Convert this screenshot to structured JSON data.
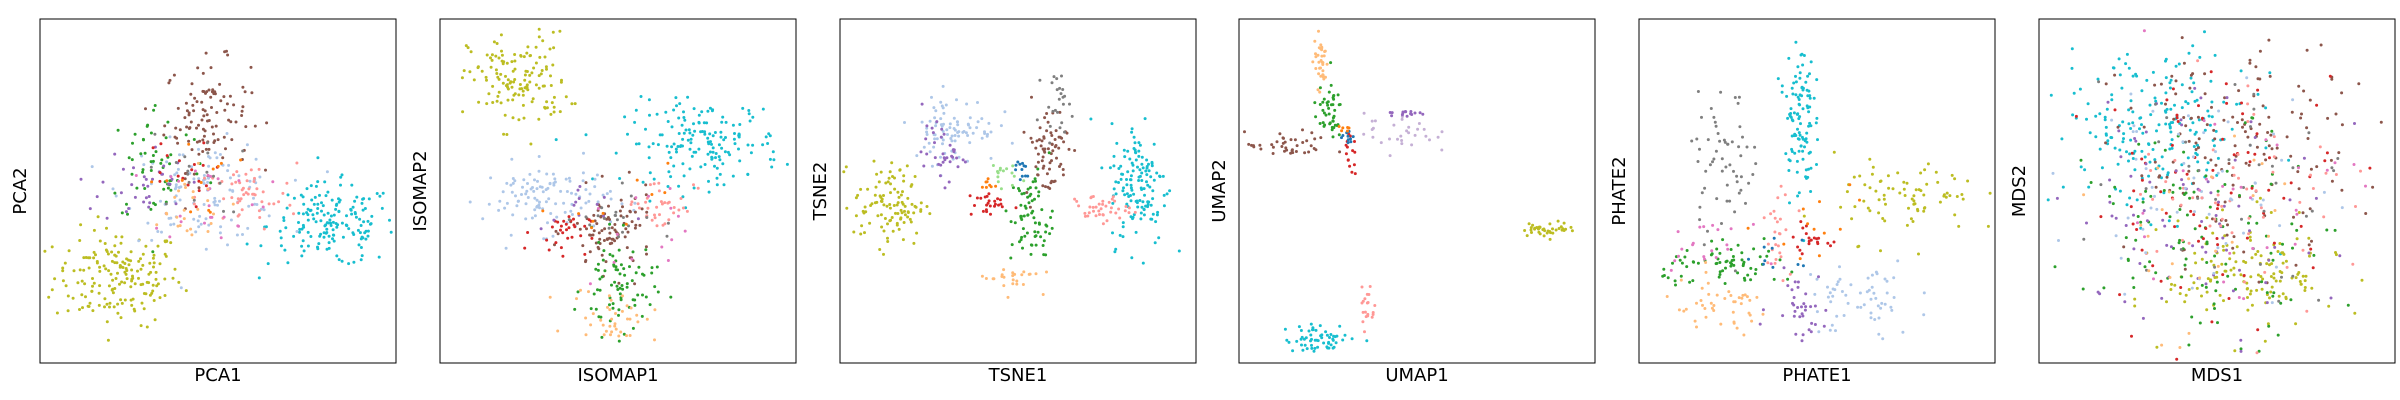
{
  "palette": {
    "blue": "#1f77b4",
    "orange": "#ff7f0e",
    "peach": "#ffbb78",
    "green": "#2ca02c",
    "light_green": "#98df8a",
    "red": "#d62728",
    "salmon": "#ff9896",
    "purple": "#9467bd",
    "lavender": "#c5b0d5",
    "brown": "#8c564b",
    "pink": "#e377c2",
    "gray": "#7f7f7f",
    "olive": "#bcbd22",
    "cyan": "#17becf",
    "light_blue": "#aec7e8"
  },
  "chart_data": [
    {
      "type": "scatter",
      "xlabel": "PCA1",
      "ylabel": "PCA2",
      "xlim": [
        0,
        100
      ],
      "ylim": [
        0,
        100
      ],
      "ticks": false,
      "grid": false,
      "legend": "none",
      "clusters": [
        {
          "color": "olive",
          "x": 22,
          "y": 25,
          "sx": 9,
          "sy": 7,
          "count": 180
        },
        {
          "color": "brown",
          "x": 47,
          "y": 72,
          "sx": 6,
          "sy": 8,
          "count": 110
        },
        {
          "color": "cyan",
          "x": 82,
          "y": 40,
          "sx": 9,
          "sy": 6,
          "count": 170
        },
        {
          "color": "light_blue",
          "x": 46,
          "y": 50,
          "sx": 11,
          "sy": 7,
          "count": 110
        },
        {
          "color": "salmon",
          "x": 58,
          "y": 48,
          "sx": 7,
          "sy": 5,
          "count": 50
        },
        {
          "color": "green",
          "x": 33,
          "y": 58,
          "sx": 7,
          "sy": 9,
          "count": 55
        },
        {
          "color": "purple",
          "x": 29,
          "y": 52,
          "sx": 6,
          "sy": 6,
          "count": 35
        },
        {
          "color": "pink",
          "x": 48,
          "y": 48,
          "sx": 8,
          "sy": 6,
          "count": 25
        },
        {
          "color": "peach",
          "x": 40,
          "y": 44,
          "sx": 7,
          "sy": 6,
          "count": 25
        },
        {
          "color": "red",
          "x": 38,
          "y": 55,
          "sx": 5,
          "sy": 5,
          "count": 18
        },
        {
          "color": "gray",
          "x": 44,
          "y": 55,
          "sx": 7,
          "sy": 6,
          "count": 18
        },
        {
          "color": "orange",
          "x": 43,
          "y": 53,
          "sx": 6,
          "sy": 6,
          "count": 12
        }
      ]
    },
    {
      "type": "scatter",
      "xlabel": "ISOMAP1",
      "ylabel": "ISOMAP2",
      "xlim": [
        0,
        100
      ],
      "ylim": [
        0,
        100
      ],
      "ticks": false,
      "grid": false,
      "legend": "none",
      "clusters": [
        {
          "color": "olive",
          "x": 22,
          "y": 82,
          "sx": 7,
          "sy": 7,
          "count": 140
        },
        {
          "color": "cyan",
          "x": 74,
          "y": 64,
          "sx": 11,
          "sy": 6,
          "count": 170
        },
        {
          "color": "light_blue",
          "x": 30,
          "y": 48,
          "sx": 9,
          "sy": 5,
          "count": 110
        },
        {
          "color": "brown",
          "x": 48,
          "y": 38,
          "sx": 6,
          "sy": 6,
          "count": 90
        },
        {
          "color": "green",
          "x": 50,
          "y": 22,
          "sx": 5,
          "sy": 7,
          "count": 80
        },
        {
          "color": "peach",
          "x": 49,
          "y": 14,
          "sx": 6,
          "sy": 4,
          "count": 40
        },
        {
          "color": "salmon",
          "x": 62,
          "y": 46,
          "sx": 5,
          "sy": 4,
          "count": 35
        },
        {
          "color": "red",
          "x": 34,
          "y": 38,
          "sx": 4,
          "sy": 3,
          "count": 30
        },
        {
          "color": "gray",
          "x": 47,
          "y": 42,
          "sx": 6,
          "sy": 5,
          "count": 20
        },
        {
          "color": "pink",
          "x": 54,
          "y": 36,
          "sx": 8,
          "sy": 7,
          "count": 14
        },
        {
          "color": "purple",
          "x": 40,
          "y": 44,
          "sx": 6,
          "sy": 5,
          "count": 12
        },
        {
          "color": "orange",
          "x": 48,
          "y": 46,
          "sx": 8,
          "sy": 6,
          "count": 10
        }
      ]
    },
    {
      "type": "scatter",
      "xlabel": "TSNE1",
      "ylabel": "TSNE2",
      "xlim": [
        0,
        100
      ],
      "ylim": [
        0,
        100
      ],
      "ticks": false,
      "grid": false,
      "legend": "none",
      "clusters": [
        {
          "color": "olive",
          "x": 14,
          "y": 46,
          "sx": 5,
          "sy": 6,
          "count": 110
        },
        {
          "color": "cyan",
          "x": 84,
          "y": 52,
          "sx": 4,
          "sy": 9,
          "count": 140
        },
        {
          "color": "light_blue",
          "x": 32,
          "y": 68,
          "sx": 6,
          "sy": 5,
          "count": 90
        },
        {
          "color": "brown",
          "x": 58,
          "y": 62,
          "sx": 3,
          "sy": 7,
          "count": 70
        },
        {
          "color": "gray",
          "x": 61,
          "y": 76,
          "sx": 2,
          "sy": 4,
          "count": 25
        },
        {
          "color": "green",
          "x": 54,
          "y": 42,
          "sx": 3,
          "sy": 7,
          "count": 70
        },
        {
          "color": "salmon",
          "x": 73,
          "y": 45,
          "sx": 4,
          "sy": 2,
          "count": 40
        },
        {
          "color": "purple",
          "x": 29,
          "y": 61,
          "sx": 3,
          "sy": 4,
          "count": 35
        },
        {
          "color": "red",
          "x": 41,
          "y": 46,
          "sx": 3,
          "sy": 2,
          "count": 25
        },
        {
          "color": "peach",
          "x": 48,
          "y": 25,
          "sx": 4,
          "sy": 2,
          "count": 25
        },
        {
          "color": "light_green",
          "x": 45,
          "y": 55,
          "sx": 2,
          "sy": 2,
          "count": 15
        },
        {
          "color": "blue",
          "x": 50,
          "y": 56,
          "sx": 2,
          "sy": 2,
          "count": 12
        },
        {
          "color": "orange",
          "x": 42,
          "y": 52,
          "sx": 1,
          "sy": 1,
          "count": 8
        }
      ]
    },
    {
      "type": "scatter",
      "xlabel": "UMAP1",
      "ylabel": "UMAP2",
      "xlim": [
        0,
        100
      ],
      "ylim": [
        0,
        100
      ],
      "ticks": false,
      "grid": false,
      "legend": "none",
      "clusters": [
        {
          "color": "peach",
          "x": 23,
          "y": 88,
          "sx": 1,
          "sy": 4,
          "count": 35
        },
        {
          "color": "green",
          "x": 25,
          "y": 73,
          "sx": 2,
          "sy": 4,
          "count": 45
        },
        {
          "color": "brown",
          "x": 14,
          "y": 63,
          "sx": 6,
          "sy": 2,
          "count": 40
        },
        {
          "color": "lavender",
          "x": 45,
          "y": 67,
          "sx": 5,
          "sy": 3,
          "count": 30
        },
        {
          "color": "purple",
          "x": 47,
          "y": 73,
          "sx": 3,
          "sy": 1,
          "count": 15
        },
        {
          "color": "red",
          "x": 31,
          "y": 60,
          "sx": 1,
          "sy": 3,
          "count": 15
        },
        {
          "color": "blue",
          "x": 31,
          "y": 66,
          "sx": 1,
          "sy": 1,
          "count": 10
        },
        {
          "color": "orange",
          "x": 30,
          "y": 68,
          "sx": 1,
          "sy": 1,
          "count": 6
        },
        {
          "color": "olive",
          "x": 87,
          "y": 39,
          "sx": 4,
          "sy": 1,
          "count": 40
        },
        {
          "color": "cyan",
          "x": 23,
          "y": 7,
          "sx": 5,
          "sy": 2,
          "count": 60
        },
        {
          "color": "salmon",
          "x": 36,
          "y": 17,
          "sx": 1,
          "sy": 4,
          "count": 20
        }
      ]
    },
    {
      "type": "scatter",
      "xlabel": "PHATE1",
      "ylabel": "PHATE2",
      "xlim": [
        0,
        100
      ],
      "ylim": [
        0,
        100
      ],
      "ticks": false,
      "grid": false,
      "legend": "none",
      "clusters": [
        {
          "color": "cyan",
          "x": 45,
          "y": 72,
          "sx": 2,
          "sy": 12,
          "count": 110
        },
        {
          "color": "gray",
          "x": 24,
          "y": 58,
          "sx": 5,
          "sy": 10,
          "count": 60
        },
        {
          "color": "olive",
          "x": 75,
          "y": 48,
          "sx": 10,
          "sy": 6,
          "count": 80
        },
        {
          "color": "green",
          "x": 27,
          "y": 28,
          "sx": 10,
          "sy": 3,
          "count": 70
        },
        {
          "color": "peach",
          "x": 22,
          "y": 16,
          "sx": 8,
          "sy": 4,
          "count": 45
        },
        {
          "color": "light_blue",
          "x": 62,
          "y": 18,
          "sx": 8,
          "sy": 6,
          "count": 60
        },
        {
          "color": "purple",
          "x": 45,
          "y": 17,
          "sx": 4,
          "sy": 5,
          "count": 35
        },
        {
          "color": "salmon",
          "x": 39,
          "y": 40,
          "sx": 2,
          "sy": 7,
          "count": 25
        },
        {
          "color": "red",
          "x": 47,
          "y": 36,
          "sx": 3,
          "sy": 2,
          "count": 20
        },
        {
          "color": "pink",
          "x": 18,
          "y": 34,
          "sx": 6,
          "sy": 3,
          "count": 20
        },
        {
          "color": "orange",
          "x": 53,
          "y": 40,
          "sx": 8,
          "sy": 5,
          "count": 12
        },
        {
          "color": "blue",
          "x": 38,
          "y": 30,
          "sx": 4,
          "sy": 3,
          "count": 10
        }
      ]
    },
    {
      "type": "scatter",
      "xlabel": "MDS1",
      "ylabel": "MDS2",
      "xlim": [
        0,
        100
      ],
      "ylim": [
        0,
        100
      ],
      "ticks": false,
      "grid": false,
      "legend": "none",
      "clusters": [
        {
          "color": "cyan",
          "x": 32,
          "y": 68,
          "sx": 14,
          "sy": 12,
          "count": 200
        },
        {
          "color": "olive",
          "x": 60,
          "y": 26,
          "sx": 12,
          "sy": 8,
          "count": 140
        },
        {
          "color": "brown",
          "x": 55,
          "y": 62,
          "sx": 16,
          "sy": 16,
          "count": 150
        },
        {
          "color": "green",
          "x": 48,
          "y": 38,
          "sx": 17,
          "sy": 15,
          "count": 110
        },
        {
          "color": "red",
          "x": 50,
          "y": 50,
          "sx": 18,
          "sy": 18,
          "count": 80
        },
        {
          "color": "purple",
          "x": 44,
          "y": 46,
          "sx": 18,
          "sy": 17,
          "count": 80
        },
        {
          "color": "salmon",
          "x": 58,
          "y": 50,
          "sx": 16,
          "sy": 16,
          "count": 60
        },
        {
          "color": "light_blue",
          "x": 45,
          "y": 50,
          "sx": 17,
          "sy": 17,
          "count": 60
        },
        {
          "color": "gray",
          "x": 50,
          "y": 55,
          "sx": 18,
          "sy": 17,
          "count": 40
        },
        {
          "color": "pink",
          "x": 52,
          "y": 45,
          "sx": 18,
          "sy": 17,
          "count": 30
        },
        {
          "color": "peach",
          "x": 48,
          "y": 40,
          "sx": 18,
          "sy": 17,
          "count": 25
        }
      ]
    }
  ]
}
